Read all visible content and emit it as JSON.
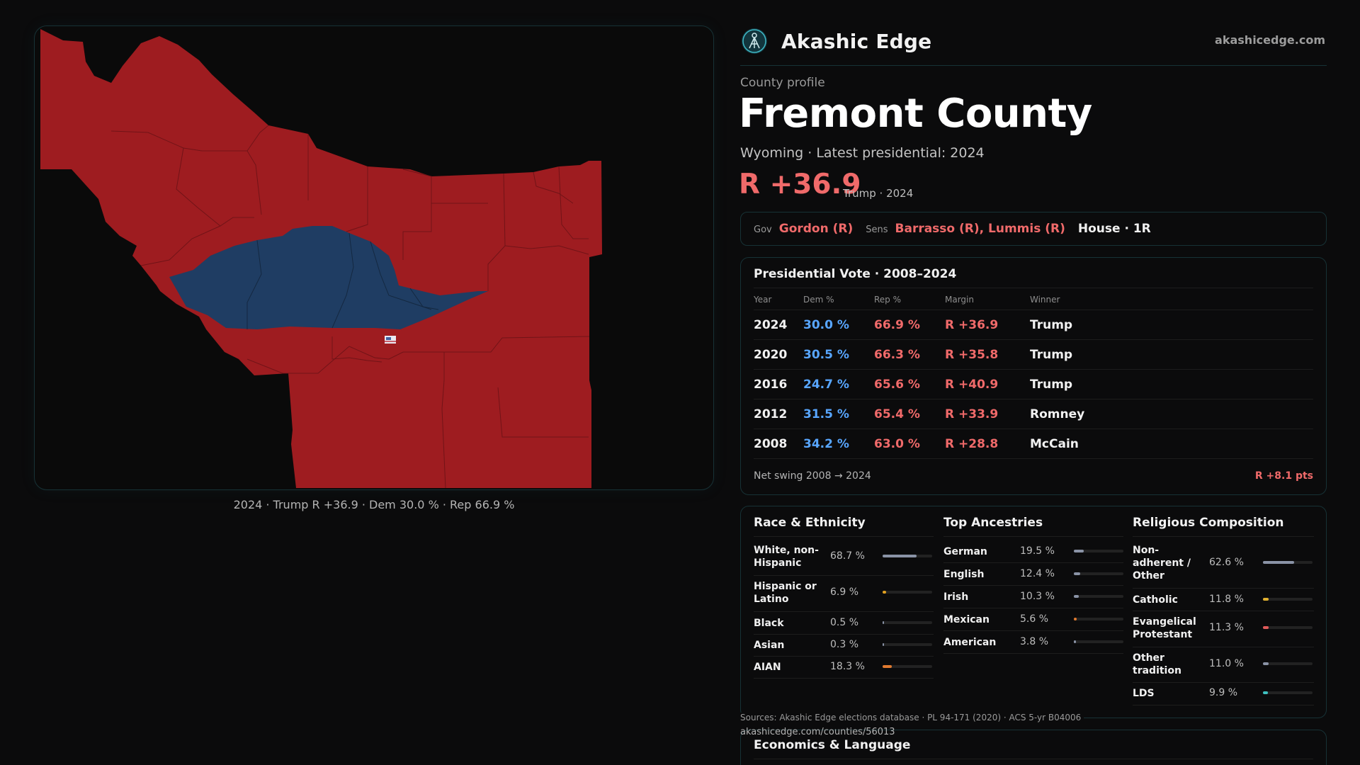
{
  "brand": {
    "name": "Akashic Edge",
    "url": "akashicedge.com"
  },
  "colors": {
    "rep": "#9e1c20",
    "dem": "#1f3d63",
    "rep_text": "#f06a6a",
    "dem_text": "#58a6ff",
    "accent": "#173236"
  },
  "profile": {
    "eyebrow": "County profile",
    "title": "Fremont County",
    "subtitle": "Wyoming · Latest presidential: 2024",
    "margin": "R +36.9",
    "margin_note": "Trump · 2024"
  },
  "officials": {
    "gov_label": "Gov",
    "gov": "Gordon (R)",
    "sens_label": "Sens",
    "sens": "Barrasso (R), Lummis (R)",
    "house": "House · 1R"
  },
  "map": {
    "caption": "2024 · Trump R +36.9 · Dem 30.0 % · Rep 66.9 %"
  },
  "vote_table": {
    "title": "Presidential Vote · 2008–2024",
    "headers": [
      "Year",
      "Dem %",
      "Rep %",
      "Margin",
      "Winner"
    ],
    "rows": [
      {
        "year": "2024",
        "dem": "30.0 %",
        "rep": "66.9 %",
        "margin": "R +36.9",
        "winner": "Trump"
      },
      {
        "year": "2020",
        "dem": "30.5 %",
        "rep": "66.3 %",
        "margin": "R +35.8",
        "winner": "Trump"
      },
      {
        "year": "2016",
        "dem": "24.7 %",
        "rep": "65.6 %",
        "margin": "R +40.9",
        "winner": "Trump"
      },
      {
        "year": "2012",
        "dem": "31.5 %",
        "rep": "65.4 %",
        "margin": "R +33.9",
        "winner": "Romney"
      },
      {
        "year": "2008",
        "dem": "34.2 %",
        "rep": "63.0 %",
        "margin": "R +28.8",
        "winner": "McCain"
      }
    ],
    "net_swing_label": "Net swing 2008 → 2024",
    "net_swing_value": "R +8.1 pts"
  },
  "demographics": {
    "race": {
      "title": "Race & Ethnicity",
      "rows": [
        {
          "label": "White, non-Hispanic",
          "pct": "68.7 %",
          "fraction": 0.687,
          "color": "#8a93a6"
        },
        {
          "label": "Hispanic or Latino",
          "pct": "6.9 %",
          "fraction": 0.069,
          "color": "#e0a020"
        },
        {
          "label": "Black",
          "pct": "0.5 %",
          "fraction": 0.005,
          "color": "#8a93a6"
        },
        {
          "label": "Asian",
          "pct": "0.3 %",
          "fraction": 0.003,
          "color": "#8a93a6"
        },
        {
          "label": "AIAN",
          "pct": "18.3 %",
          "fraction": 0.183,
          "color": "#e07a30"
        }
      ]
    },
    "ancestry": {
      "title": "Top Ancestries",
      "rows": [
        {
          "label": "German",
          "pct": "19.5 %",
          "fraction": 0.195,
          "color": "#8a93a6"
        },
        {
          "label": "English",
          "pct": "12.4 %",
          "fraction": 0.124,
          "color": "#8a93a6"
        },
        {
          "label": "Irish",
          "pct": "10.3 %",
          "fraction": 0.103,
          "color": "#8a93a6"
        },
        {
          "label": "Mexican",
          "pct": "5.6 %",
          "fraction": 0.056,
          "color": "#e07a30"
        },
        {
          "label": "American",
          "pct": "3.8 %",
          "fraction": 0.038,
          "color": "#8a93a6"
        }
      ]
    },
    "religion": {
      "title": "Religious Composition",
      "rows": [
        {
          "label": "Non-adherent / Other",
          "pct": "62.6 %",
          "fraction": 0.626,
          "color": "#8a93a6"
        },
        {
          "label": "Catholic",
          "pct": "11.8 %",
          "fraction": 0.118,
          "color": "#e0b030"
        },
        {
          "label": "Evangelical Protestant",
          "pct": "11.3 %",
          "fraction": 0.113,
          "color": "#e05a5a"
        },
        {
          "label": "Other tradition",
          "pct": "11.0 %",
          "fraction": 0.11,
          "color": "#8a93a6"
        },
        {
          "label": "LDS",
          "pct": "9.9 %",
          "fraction": 0.099,
          "color": "#3ec0c0"
        }
      ]
    }
  },
  "footer": {
    "sources": "Sources: Akashic Edge elections database · PL 94-171 (2020) · ACS 5-yr B04006",
    "url": "akashicedge.com/counties/56013"
  },
  "economics": {
    "title": "Economics & Language"
  }
}
